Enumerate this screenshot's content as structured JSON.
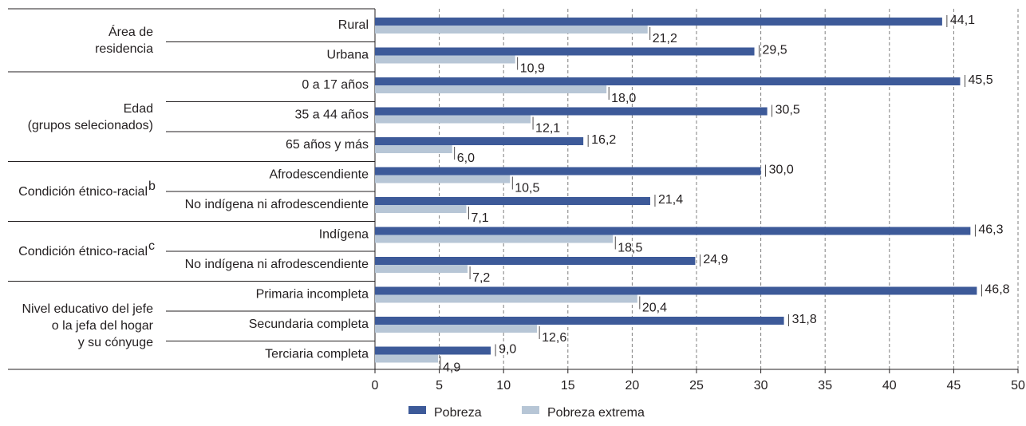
{
  "chart_data": {
    "type": "bar",
    "orientation": "horizontal",
    "groups": [
      {
        "label": [
          "Área de",
          "residencia"
        ],
        "categories": [
          "Rural",
          "Urbana"
        ]
      },
      {
        "label": [
          "Edad",
          "(grupos selecionados)"
        ],
        "categories": [
          "0 a 17 años",
          "35 a 44 años",
          "65 años y más"
        ]
      },
      {
        "label": [
          "Condición étnico-racial",
          "b"
        ],
        "categories": [
          "Afrodescendiente",
          "No indígena ni afrodescendiente"
        ]
      },
      {
        "label": [
          "Condición étnico-racial",
          "c"
        ],
        "categories": [
          "Indígena",
          "No indígena ni afrodescendiente"
        ]
      },
      {
        "label": [
          "Nivel educativo del jefe",
          "o la jefa del hogar",
          "y su cónyuge"
        ],
        "categories": [
          "Primaria incompleta",
          "Secundaria completa",
          "Terciaria completa"
        ]
      }
    ],
    "categories": [
      "Rural",
      "Urbana",
      "0 a 17 años",
      "35 a 44 años",
      "65 años y más",
      "Afrodescendiente",
      "No indígena ni afrodescendiente",
      "Indígena",
      "No indígena ni afrodescendiente",
      "Primaria incompleta",
      "Secundaria completa",
      "Terciaria completa"
    ],
    "series": [
      {
        "name": "Pobreza",
        "color": "#3d5a99",
        "values": [
          44.1,
          29.5,
          45.5,
          30.5,
          16.2,
          30.0,
          21.4,
          46.3,
          24.9,
          46.8,
          31.8,
          9.0
        ],
        "labels": [
          "44,1",
          "29,5",
          "45,5",
          "30,5",
          "16,2",
          "30,0",
          "21,4",
          "46,3",
          "24,9",
          "46,8",
          "31,8",
          "9,0"
        ]
      },
      {
        "name": "Pobreza extrema",
        "color": "#b7c6d6",
        "values": [
          21.2,
          10.9,
          18.0,
          12.1,
          6.0,
          10.5,
          7.1,
          18.5,
          7.2,
          20.4,
          12.6,
          4.9
        ],
        "labels": [
          "21,2",
          "10,9",
          "18,0",
          "12,1",
          "6,0",
          "10,5",
          "7,1",
          "18,5",
          "7,2",
          "20,4",
          "12,6",
          "4,9"
        ]
      }
    ],
    "xlim": [
      0,
      50
    ],
    "xticks": [
      0,
      5,
      10,
      15,
      20,
      25,
      30,
      35,
      40,
      45,
      50
    ],
    "grid": "vertical dashed",
    "legend_position": "bottom-center"
  }
}
